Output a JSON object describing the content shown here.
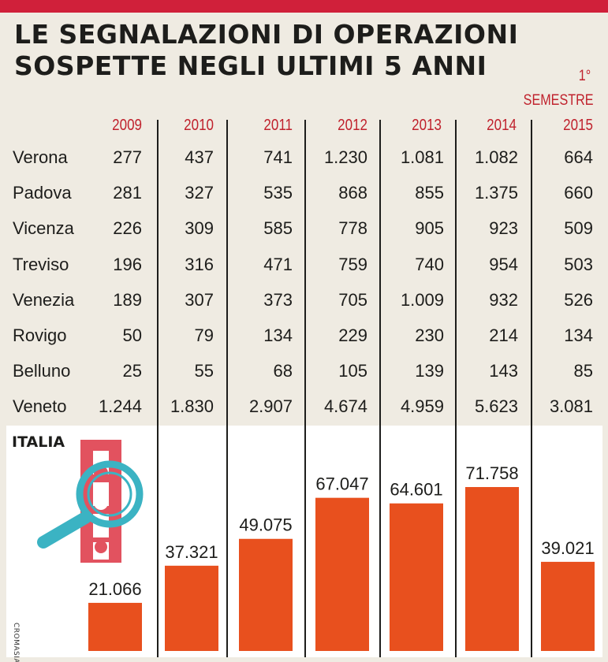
{
  "header": {
    "title_line1": "LE SEGNALAZIONI DI OPERAZIONI",
    "title_line2": "SOSPETTE NEGLI ULTIMI 5 ANNI",
    "last_col_note_line1": "1°",
    "last_col_note_line2": "SEMESTRE"
  },
  "table": {
    "columns": [
      "2009",
      "2010",
      "2011",
      "2012",
      "2013",
      "2014",
      "2015"
    ],
    "rows": [
      {
        "label": "Verona",
        "values": [
          "277",
          "437",
          "741",
          "1.230",
          "1.081",
          "1.082",
          "664"
        ]
      },
      {
        "label": "Padova",
        "values": [
          "281",
          "327",
          "535",
          "868",
          "855",
          "1.375",
          "660"
        ]
      },
      {
        "label": "Vicenza",
        "values": [
          "226",
          "309",
          "585",
          "778",
          "905",
          "923",
          "509"
        ]
      },
      {
        "label": "Treviso",
        "values": [
          "196",
          "316",
          "471",
          "759",
          "740",
          "954",
          "503"
        ]
      },
      {
        "label": "Venezia",
        "values": [
          "189",
          "307",
          "373",
          "705",
          "1.009",
          "932",
          "526"
        ]
      },
      {
        "label": "Rovigo",
        "values": [
          "50",
          "79",
          "134",
          "229",
          "230",
          "214",
          "134"
        ]
      },
      {
        "label": "Belluno",
        "values": [
          "25",
          "55",
          "68",
          "105",
          "139",
          "143",
          "85"
        ]
      },
      {
        "label": "Veneto",
        "values": [
          "1.244",
          "1.830",
          "2.907",
          "4.674",
          "4.959",
          "5.623",
          "3.081"
        ]
      }
    ]
  },
  "chart_data": {
    "type": "bar",
    "title": "ITALIA",
    "categories": [
      "2009",
      "2010",
      "2011",
      "2012",
      "2013",
      "2014",
      "2015"
    ],
    "values": [
      21066,
      37321,
      49075,
      67047,
      64601,
      71758,
      39021
    ],
    "value_labels": [
      "21.066",
      "37.321",
      "49.075",
      "67.047",
      "64.601",
      "71.758",
      "39.021"
    ],
    "bar_color": "#e8501e",
    "ylim": [
      0,
      80000
    ],
    "grid": false,
    "legend": "none"
  },
  "colors": {
    "accent_red": "#d0203a",
    "year_text": "#c0222d",
    "background": "#efebe2",
    "bar": "#e8501e",
    "magnifier": "#3bb3c3"
  },
  "decor": {
    "illustration": "magnifier-film-strip-icon"
  },
  "credit": "CROMASIA"
}
